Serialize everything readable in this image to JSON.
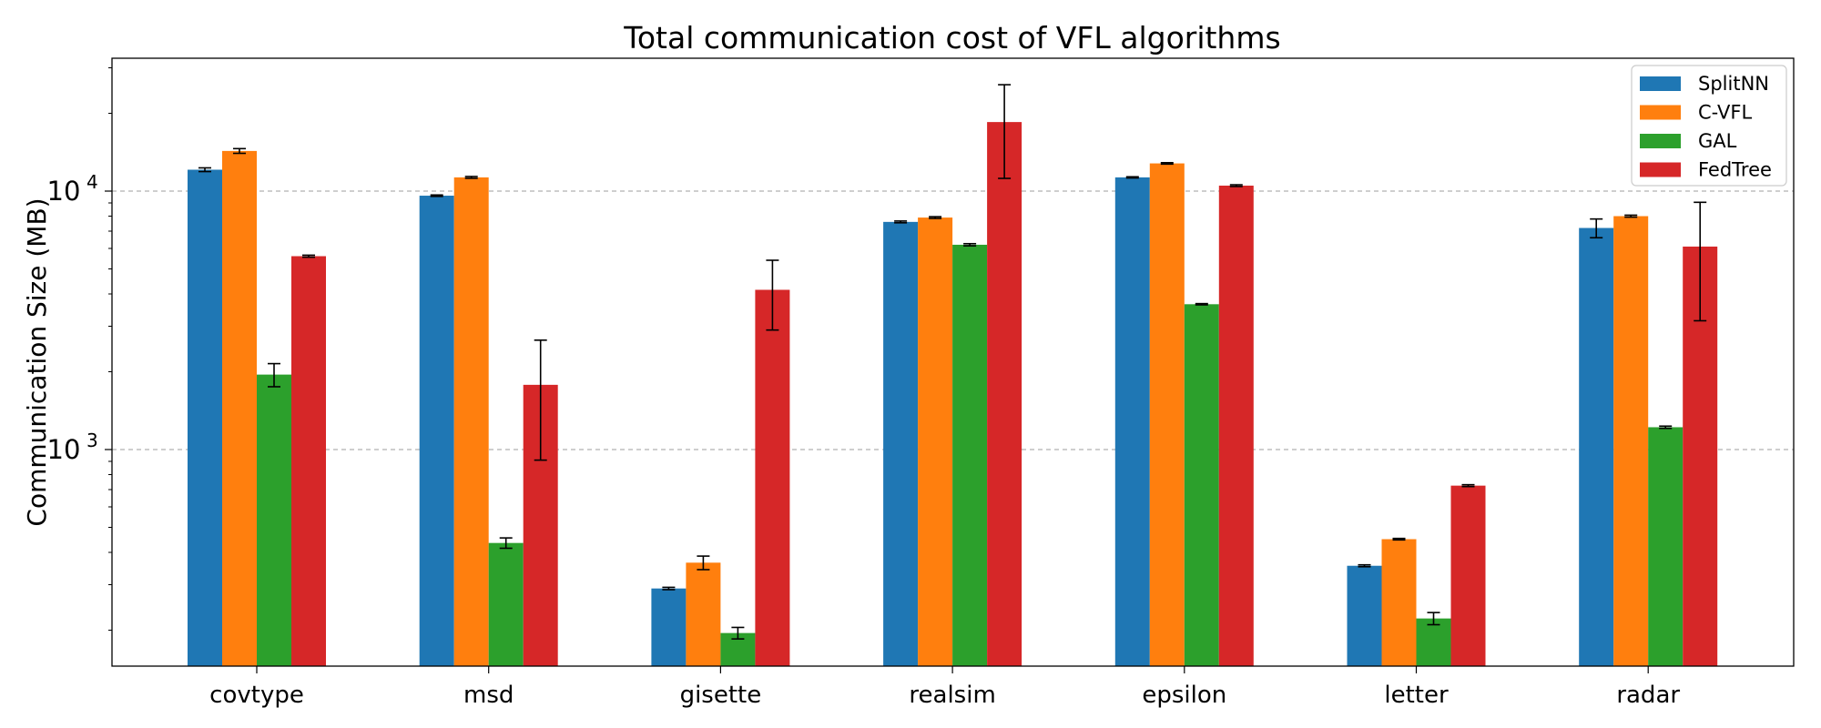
{
  "chart_data": {
    "type": "bar",
    "title": "Total communication cost of VFL algorithms",
    "xlabel": "",
    "ylabel": "Communication Size (MB)",
    "yscale": "log",
    "ylim": [
      155,
      32000
    ],
    "grid": "y-major-dashed",
    "legend_position": "top-right",
    "categories": [
      "covtype",
      "msd",
      "gisette",
      "realsim",
      "epsilon",
      "letter",
      "radar"
    ],
    "series": [
      {
        "name": "SplitNN",
        "color": "#1f77b4",
        "values": [
          12100,
          9600,
          290,
          7600,
          11300,
          355,
          7200
        ],
        "errors": [
          200,
          60,
          3,
          60,
          60,
          3,
          600
        ]
      },
      {
        "name": "C-VFL",
        "color": "#ff7f0e",
        "values": [
          14300,
          11300,
          365,
          7900,
          12800,
          450,
          8000
        ],
        "errors": [
          300,
          90,
          22,
          60,
          80,
          3,
          70
        ]
      },
      {
        "name": "GAL",
        "color": "#2ca02c",
        "values": [
          1950,
          435,
          195,
          6200,
          3650,
          222,
          1220
        ],
        "errors": [
          200,
          20,
          10,
          60,
          20,
          12,
          12
        ]
      },
      {
        "name": "FedTree",
        "color": "#d62728",
        "values": [
          5600,
          1780,
          4150,
          18500,
          10500,
          725,
          6100
        ],
        "errors": [
          50,
          870,
          1250,
          7300,
          80,
          6,
          2950
        ]
      }
    ],
    "yticks": [
      {
        "value": 1000,
        "base": "10",
        "exp": "3"
      },
      {
        "value": 10000,
        "base": "10",
        "exp": "4"
      }
    ]
  }
}
